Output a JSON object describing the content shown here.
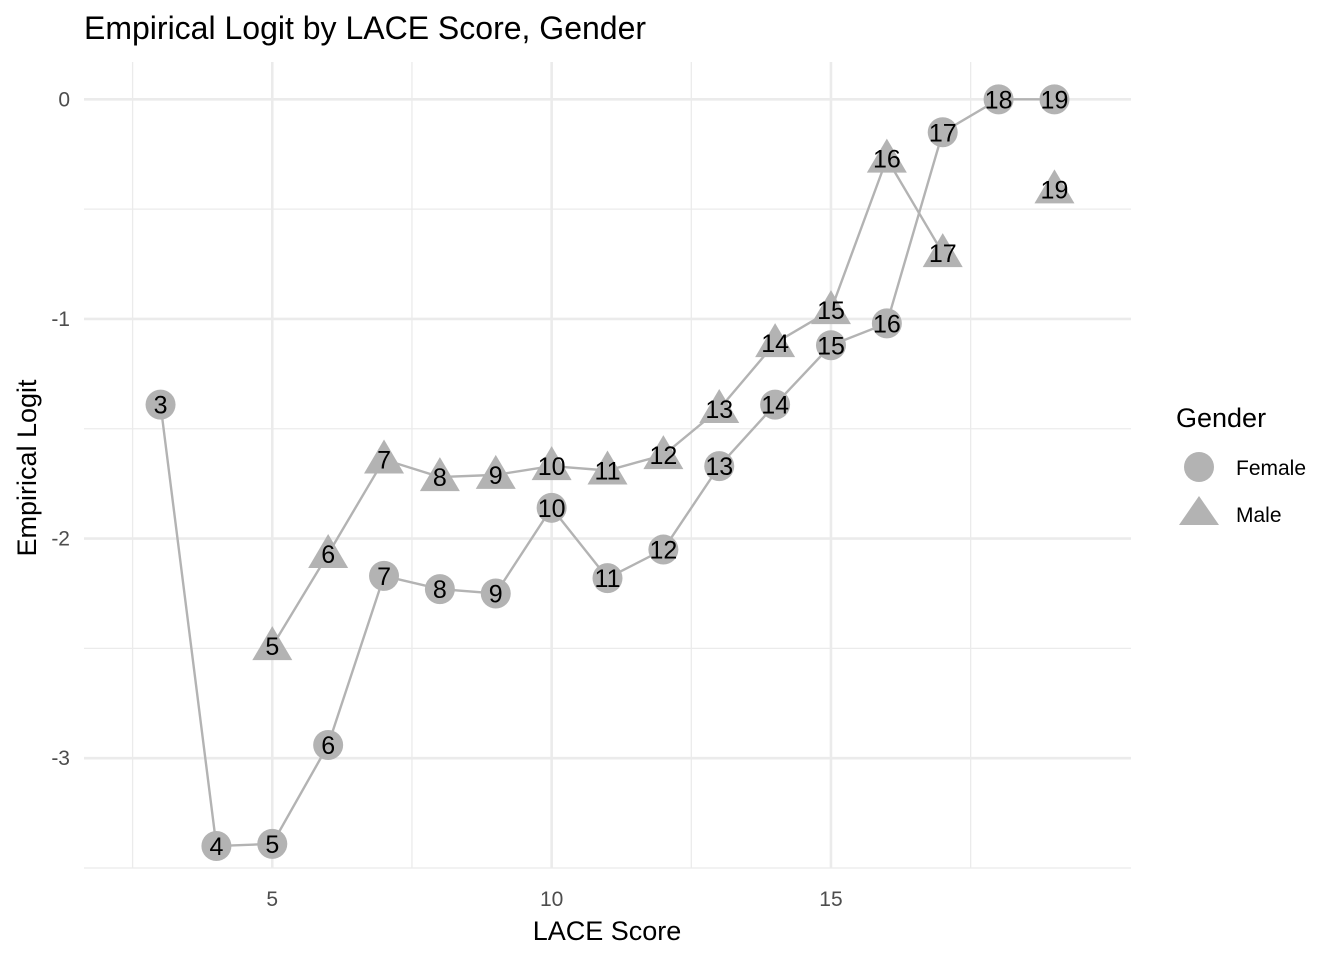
{
  "chart_data": {
    "type": "line",
    "title": "Empirical Logit by LACE Score, Gender",
    "xlabel": "LACE Score",
    "ylabel": "Empirical Logit",
    "xlim": [
      1.63,
      20.37
    ],
    "ylim": [
      -3.5,
      0.17
    ],
    "x_ticks": [
      5,
      10,
      15
    ],
    "x_tick_labels": [
      "5",
      "10",
      "15"
    ],
    "x_minor_ticks": [
      2.5,
      7.5,
      12.5,
      17.5
    ],
    "y_ticks": [
      0,
      -1,
      -2,
      -3
    ],
    "y_tick_labels": [
      "0",
      "-1",
      "-2",
      "-3"
    ],
    "y_minor_ticks": [
      -0.5,
      -1.5,
      -2.5,
      -3.5
    ],
    "grid": true,
    "legend": {
      "title": "Gender",
      "position": "right",
      "entries": [
        {
          "label": "Female",
          "shape": "circle"
        },
        {
          "label": "Male",
          "shape": "triangle"
        }
      ]
    },
    "colors": {
      "points": "#b3b3b3",
      "lines": "#b3b3b3",
      "grid": "#ebebeb"
    },
    "series": [
      {
        "name": "Female",
        "shape": "circle",
        "x": [
          3,
          4,
          5,
          6,
          7,
          8,
          9,
          10,
          11,
          12,
          13,
          14,
          15,
          16,
          17,
          18,
          19
        ],
        "y": [
          -1.39,
          -3.4,
          -3.39,
          -2.94,
          -2.17,
          -2.23,
          -2.25,
          -1.86,
          -2.18,
          -2.05,
          -1.67,
          -1.39,
          -1.12,
          -1.02,
          -0.15,
          0.0,
          0.0
        ],
        "labels": [
          "3",
          "4",
          "5",
          "6",
          "7",
          "8",
          "9",
          "10",
          "11",
          "12",
          "13",
          "14",
          "15",
          "16",
          "17",
          "18",
          "19"
        ]
      },
      {
        "name": "Male",
        "shape": "triangle",
        "x": [
          5,
          6,
          7,
          8,
          9,
          10,
          11,
          12,
          13,
          14,
          15,
          16,
          17,
          19
        ],
        "y": [
          -2.49,
          -2.07,
          -1.64,
          -1.72,
          -1.71,
          -1.67,
          -1.69,
          -1.62,
          -1.41,
          -1.11,
          -0.96,
          -0.27,
          -0.7,
          -0.41
        ],
        "labels": [
          "5",
          "6",
          "7",
          "8",
          "9",
          "10",
          "11",
          "12",
          "13",
          "14",
          "15",
          "16",
          "17",
          "19"
        ],
        "line_segments": [
          [
            5,
            17
          ]
        ]
      }
    ]
  }
}
